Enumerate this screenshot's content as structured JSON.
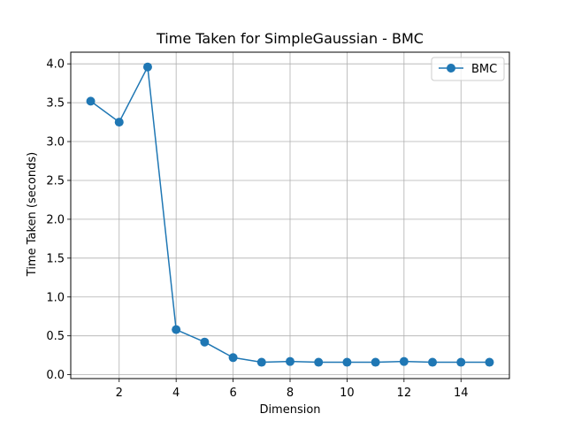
{
  "chart_data": {
    "type": "line",
    "title": "Time Taken for SimpleGaussian - BMC",
    "xlabel": "Dimension",
    "ylabel": "Time Taken (seconds)",
    "xlim": [
      0.3,
      15.7
    ],
    "ylim": [
      -0.05,
      4.15
    ],
    "xticks": [
      2,
      4,
      6,
      8,
      10,
      12,
      14
    ],
    "xtick_labels": [
      "2",
      "4",
      "6",
      "8",
      "10",
      "12",
      "14"
    ],
    "yticks": [
      0.0,
      0.5,
      1.0,
      1.5,
      2.0,
      2.5,
      3.0,
      3.5,
      4.0
    ],
    "ytick_labels": [
      "0.0",
      "0.5",
      "1.0",
      "1.5",
      "2.0",
      "2.5",
      "3.0",
      "3.5",
      "4.0"
    ],
    "grid": true,
    "legend_position": "top-right",
    "x": [
      1,
      2,
      3,
      4,
      5,
      6,
      7,
      8,
      9,
      10,
      11,
      12,
      13,
      14,
      15
    ],
    "series": [
      {
        "name": "BMC",
        "color": "#1f77b4",
        "marker": "circle",
        "values": [
          3.52,
          3.25,
          3.96,
          0.58,
          0.42,
          0.22,
          0.16,
          0.17,
          0.16,
          0.16,
          0.16,
          0.17,
          0.16,
          0.16,
          0.16
        ]
      }
    ]
  }
}
